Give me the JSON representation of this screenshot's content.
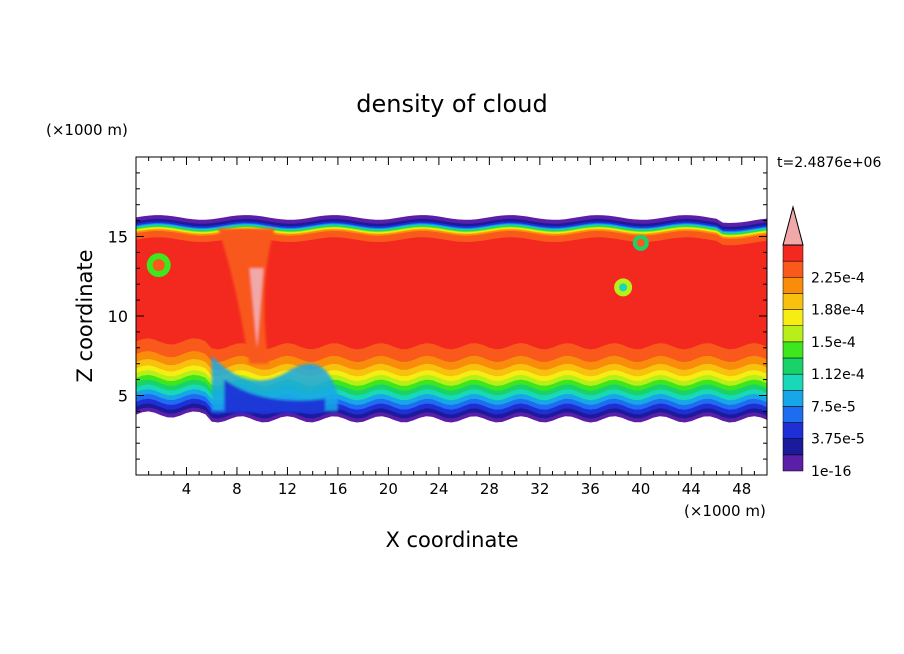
{
  "chart_data": {
    "type": "heatmap",
    "title": "density of cloud",
    "xlabel": "X coordinate",
    "ylabel": "Z coordinate",
    "x_unit": "(×1000 m)",
    "z_unit": "(×1000 m)",
    "time_label": "t=2.4876e+06",
    "xlim": [
      0,
      50
    ],
    "ylim": [
      0,
      20
    ],
    "x_ticks": [
      4,
      8,
      12,
      16,
      20,
      24,
      28,
      32,
      36,
      40,
      44,
      48
    ],
    "y_ticks": [
      5,
      10,
      15
    ],
    "colorbar": {
      "labels": [
        "1e-16",
        "3.75e-5",
        "7.5e-5",
        "1.12e-4",
        "1.5e-4",
        "1.88e-4",
        "2.25e-4"
      ],
      "levels": [
        1e-16,
        1.875e-05,
        3.75e-05,
        5.625e-05,
        7.5e-05,
        9.375e-05,
        0.0001125,
        0.00013125,
        0.00015,
        0.00016875,
        0.0001875,
        0.00020625,
        0.000225,
        0.00024375
      ],
      "colors": [
        "#5a1ea8",
        "#1a1a9a",
        "#1f2fd6",
        "#1e6cf0",
        "#17a7e8",
        "#18d8b8",
        "#19d36a",
        "#3ee61e",
        "#b8ef18",
        "#f6ee12",
        "#f8c10e",
        "#fa8c0c",
        "#f9591a",
        "#f3291f"
      ],
      "overflow_color": "#f0a8a8"
    },
    "field_description": {
      "cloud_base_km": 3.5,
      "cloud_top_km": 16.2,
      "core_value": 0.00023
    }
  }
}
